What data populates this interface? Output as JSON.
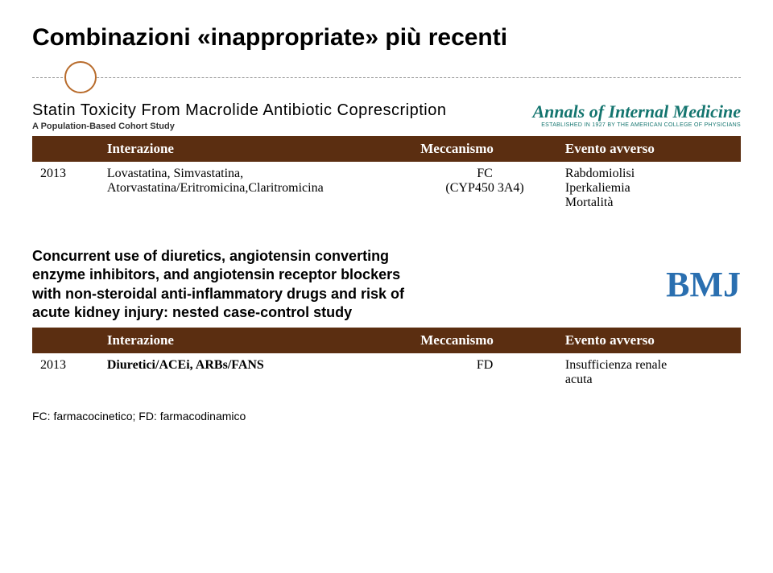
{
  "title": "Combinazioni «inappropriate» più recenti",
  "paper1": {
    "title": "Statin Toxicity From Macrolide Antibiotic Coprescription",
    "subtitle": "A Population-Based Cohort Study",
    "journal": "Annals of Internal Medicine",
    "journal_sub": "ESTABLISHED IN 1927 BY THE AMERICAN COLLEGE OF PHYSICIANS"
  },
  "table1": {
    "headers": {
      "col1": "",
      "col2": "Interazione",
      "col3": "Meccanismo",
      "col4": "Evento avverso"
    },
    "row": {
      "year": "2013",
      "interazione_l1": "Lovastatina, Simvastatina,",
      "interazione_l2": "Atorvastatina/Eritromicina,Claritromicina",
      "meccanismo_l1": "FC",
      "meccanismo_l2": "(CYP450 3A4)",
      "evento_l1": "Rabdomiolisi",
      "evento_l2": "Iperkaliemia",
      "evento_l3": "Mortalità"
    }
  },
  "paper2": {
    "text_l1": "Concurrent use of diuretics, angiotensin converting",
    "text_l2": "enzyme inhibitors, and angiotensin receptor blockers",
    "text_l3": "with non-steroidal anti-inflammatory drugs and risk of",
    "text_l4": "acute kidney injury: nested case-control study",
    "logo": "BMJ"
  },
  "table2": {
    "headers": {
      "col1": "",
      "col2": "Interazione",
      "col3": "Meccanismo",
      "col4": "Evento avverso"
    },
    "row": {
      "year": "2013",
      "interazione": "Diuretici/ACEi, ARBs/FANS",
      "meccanismo": "FD",
      "evento_l1": "Insufficienza renale",
      "evento_l2": "acuta"
    }
  },
  "footnote": "FC: farmacocinetico;  FD: farmacodinamico"
}
